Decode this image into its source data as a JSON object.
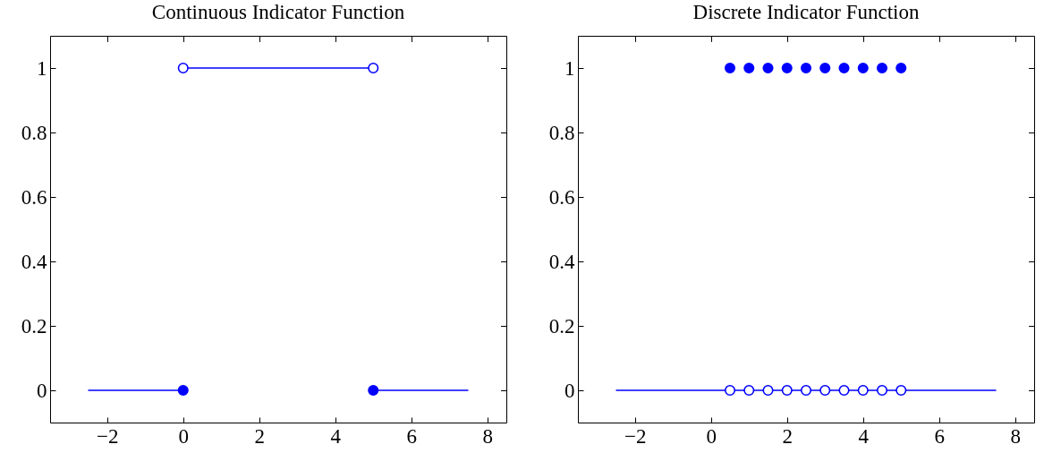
{
  "chart_data": [
    {
      "type": "line",
      "title": "Continuous Indicator Function",
      "xlim": [
        -3.5,
        8.5
      ],
      "ylim": [
        -0.1,
        1.1
      ],
      "xticks": [
        {
          "value": -2,
          "label": "−2"
        },
        0,
        2,
        4,
        6,
        8
      ],
      "yticks": [
        0,
        0.2,
        0.4,
        0.6,
        0.8,
        1
      ],
      "grid": false,
      "series": [
        {
          "color": "#0000ff",
          "x": [
            -2.5,
            0
          ],
          "values": [
            0,
            0
          ],
          "marker": "none",
          "line_style": "solid"
        },
        {
          "color": "#0000ff",
          "x": [
            0,
            5
          ],
          "values": [
            1,
            1
          ],
          "marker": "none",
          "line_style": "solid"
        },
        {
          "color": "#0000ff",
          "x": [
            5,
            7.5
          ],
          "values": [
            0,
            0
          ],
          "marker": "none",
          "line_style": "solid"
        },
        {
          "type": "scatter",
          "color": "#0000ff",
          "x": [
            0,
            5
          ],
          "values": [
            0,
            0
          ],
          "marker": "circle"
        },
        {
          "type": "scatter",
          "color": "#ffffff",
          "x": [
            0,
            5
          ],
          "values": [
            1,
            1
          ],
          "marker": "circle"
        }
      ]
    },
    {
      "type": "line",
      "title": "Discrete Indicator Function",
      "xlim": [
        -3.5,
        8.5
      ],
      "ylim": [
        -0.1,
        1.1
      ],
      "xticks": [
        {
          "value": -2,
          "label": "−2"
        },
        0,
        2,
        4,
        6,
        8
      ],
      "yticks": [
        0,
        0.2,
        0.4,
        0.6,
        0.8,
        1
      ],
      "grid": false,
      "series": [
        {
          "color": "#0000ff",
          "x": [
            -2.5,
            7.5
          ],
          "values": [
            0,
            0
          ],
          "marker": "none",
          "line_style": "solid"
        },
        {
          "type": "scatter",
          "color": "#ffffff",
          "x": [
            0.5,
            1,
            1.5,
            2,
            2.5,
            3,
            3.5,
            4,
            4.5,
            5
          ],
          "values": [
            0,
            0,
            0,
            0,
            0,
            0,
            0,
            0,
            0,
            0
          ],
          "marker": "circle"
        },
        {
          "type": "scatter",
          "color": "#0000ff",
          "x": [
            0.5,
            1,
            1.5,
            2,
            2.5,
            3,
            3.5,
            4,
            4.5,
            5
          ],
          "values": [
            1,
            1,
            1,
            1,
            1,
            1,
            1,
            1,
            1,
            1
          ],
          "marker": "circle"
        }
      ]
    }
  ]
}
